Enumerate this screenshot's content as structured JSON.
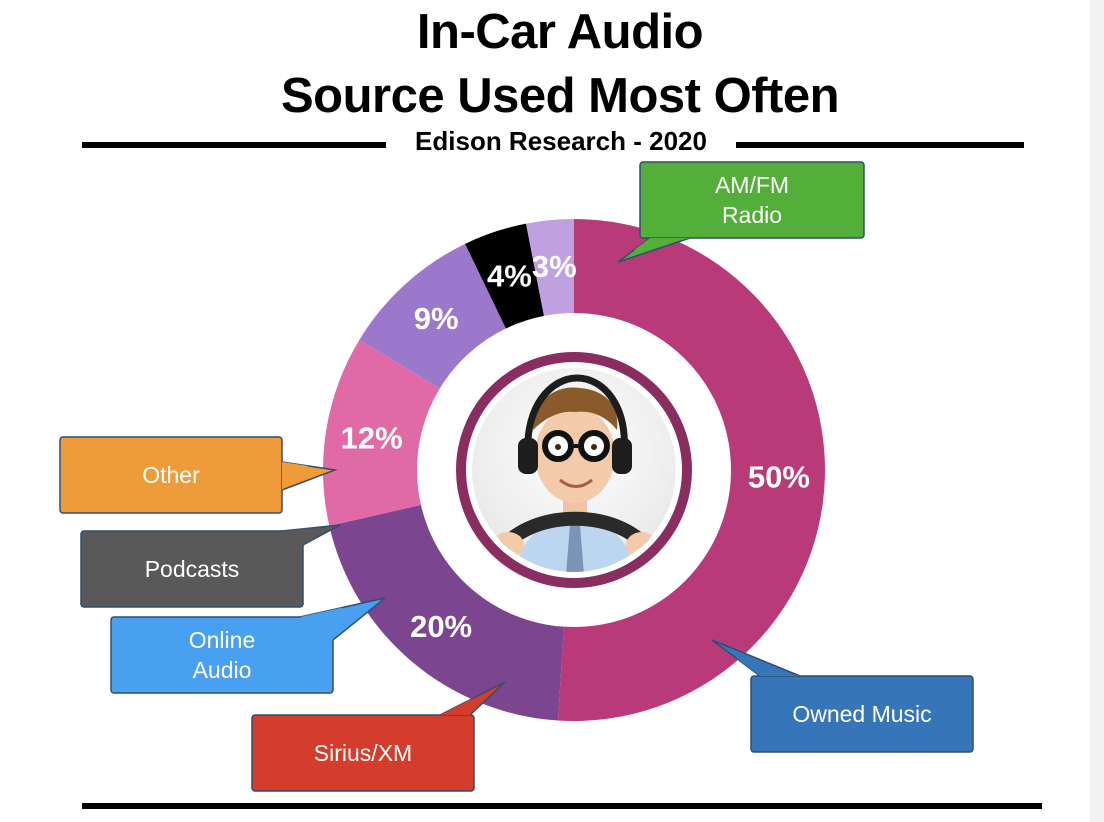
{
  "chart_data": {
    "type": "pie",
    "title": "In-Car Audio",
    "subtitle": "Source Used Most Often",
    "source": "Edison Research - 2020",
    "categories": [
      "AM/FM Radio",
      "Owned Music",
      "Sirius/XM",
      "Online Audio",
      "Podcasts",
      "Other"
    ],
    "values": [
      50,
      20,
      12,
      9,
      4,
      3
    ],
    "value_labels": [
      "50%",
      "20%",
      "12%",
      "9%",
      "4%",
      "3%"
    ],
    "callouts": [
      [
        "AM/FM",
        "Radio"
      ],
      [
        "Owned Music"
      ],
      [
        "Sirius/XM"
      ],
      [
        "Online",
        "Audio"
      ],
      [
        "Podcasts"
      ],
      [
        "Other"
      ]
    ],
    "slice_colors": [
      "#b83a78",
      "#7b4590",
      "#e06aa5",
      "#9c78cc",
      "#000000",
      "#bfa1e2"
    ],
    "callout_colors": [
      "#54ae3a",
      "#3676b8",
      "#d43c2c",
      "#4aa0f0",
      "#595959",
      "#ee9c3a"
    ],
    "center_ring_color": "#8a2d60",
    "legend": "none",
    "grid": false
  }
}
